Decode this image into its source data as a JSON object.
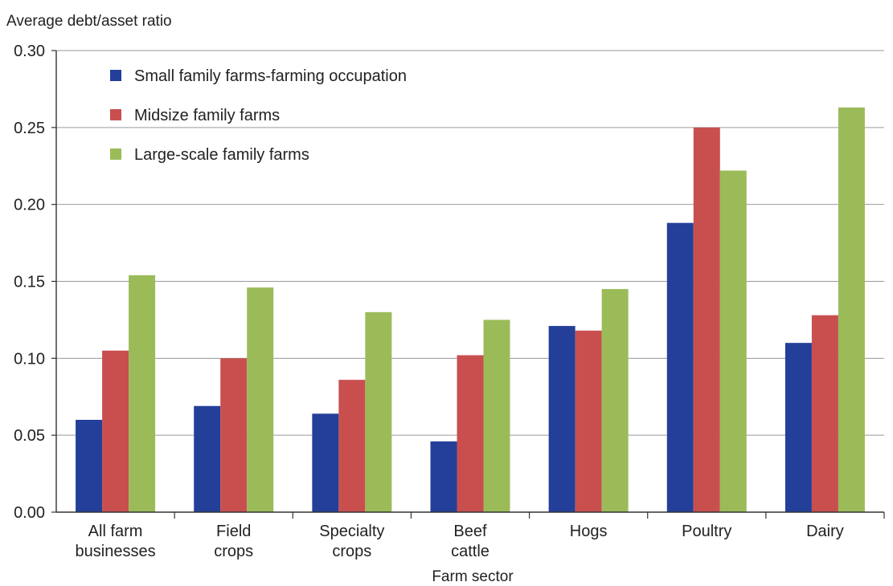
{
  "chart_data": {
    "type": "bar",
    "ylabel": "Average debt/asset ratio",
    "xlabel": "Farm sector",
    "ylim": [
      0,
      0.3
    ],
    "yticks": [
      "0.00",
      "0.05",
      "0.10",
      "0.15",
      "0.20",
      "0.25",
      "0.30"
    ],
    "ytick_values": [
      0,
      0.05,
      0.1,
      0.15,
      0.2,
      0.25,
      0.3
    ],
    "grid": true,
    "legend_position": "top-left",
    "categories": [
      [
        "All farm",
        "businesses"
      ],
      [
        "Field",
        "crops"
      ],
      [
        "Specialty",
        "crops"
      ],
      [
        "Beef",
        "cattle"
      ],
      [
        "Hogs"
      ],
      [
        "Poultry"
      ],
      [
        "Dairy"
      ]
    ],
    "series": [
      {
        "name": "Small family farms-farming occupation",
        "color": "#233f99",
        "values": [
          0.06,
          0.069,
          0.064,
          0.046,
          0.121,
          0.188,
          0.11
        ]
      },
      {
        "name": "Midsize family farms",
        "color": "#c94f4f",
        "values": [
          0.105,
          0.1,
          0.086,
          0.102,
          0.118,
          0.25,
          0.128
        ]
      },
      {
        "name": "Large-scale family farms",
        "color": "#9bbb59",
        "values": [
          0.154,
          0.146,
          0.13,
          0.125,
          0.145,
          0.222,
          0.263
        ]
      }
    ]
  }
}
